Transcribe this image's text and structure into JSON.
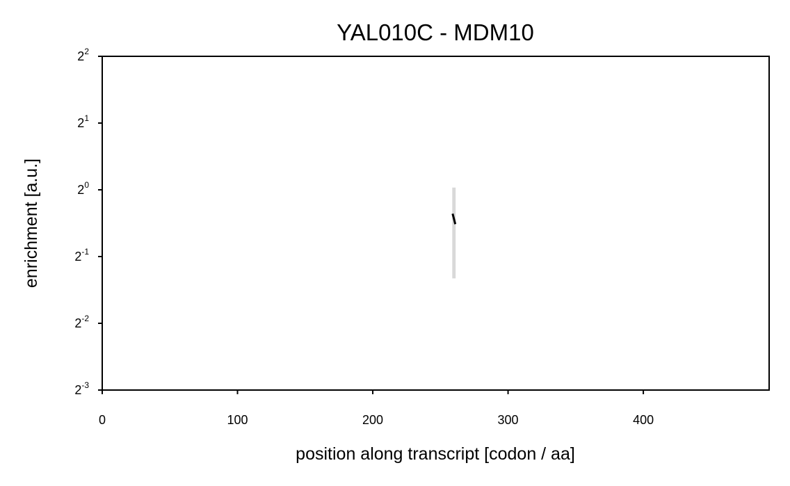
{
  "chart_data": {
    "type": "line",
    "title": "YAL010C - MDM10",
    "xlabel": "position along transcript [codon / aa]",
    "ylabel": "enrichment [a.u.]",
    "xlim": [
      0,
      493
    ],
    "ylim_log2": [
      -3,
      2
    ],
    "y_scale": "log2",
    "x_ticks": [
      0,
      100,
      200,
      300,
      400
    ],
    "y_ticks": [
      {
        "base": "2",
        "exp": "-3"
      },
      {
        "base": "2",
        "exp": "-2"
      },
      {
        "base": "2",
        "exp": "-1"
      },
      {
        "base": "2",
        "exp": "0"
      },
      {
        "base": "2",
        "exp": "1"
      },
      {
        "base": "2",
        "exp": "2"
      }
    ],
    "grid": false,
    "series": [
      {
        "x": [
          259,
          260,
          261
        ],
        "y": [
          0.78,
          0.74,
          0.7
        ],
        "band_low": [
          0.4,
          0.4,
          0.4
        ],
        "band_high": [
          1.02,
          1.02,
          1.02
        ]
      }
    ],
    "colors": {
      "line": "#000000",
      "band": "#d9d9d9"
    }
  }
}
